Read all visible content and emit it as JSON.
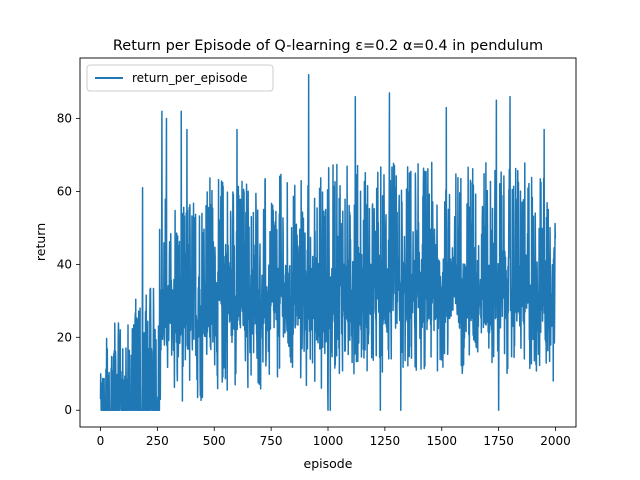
{
  "chart_data": {
    "type": "line",
    "title": "Return per Episode of Q-learning ε=0.2 α=0.4 in pendulum",
    "xlabel": "episode",
    "ylabel": "return",
    "xlim": [
      -90,
      2090
    ],
    "ylim": [
      -4.6,
      96.6
    ],
    "xticks": [
      0,
      250,
      500,
      750,
      1000,
      1250,
      1500,
      1750,
      2000
    ],
    "yticks": [
      0,
      20,
      40,
      60,
      80
    ],
    "grid": false,
    "legend": {
      "position": "top-left",
      "entries": [
        "return_per_episode"
      ]
    },
    "colors": {
      "series": "#1f77b4"
    },
    "series": [
      {
        "name": "return_per_episode",
        "n_points": 2000,
        "phases": [
          {
            "x_start": 0,
            "x_end": 20,
            "baseline": 0,
            "noise_low": 0,
            "noise_high": 10
          },
          {
            "x_start": 20,
            "x_end": 150,
            "baseline": 0,
            "noise_low": 0,
            "noise_high": 24
          },
          {
            "x_start": 150,
            "x_end": 260,
            "baseline": 0,
            "noise_low": 0,
            "noise_high": 34
          },
          {
            "x_start": 260,
            "x_end": 450,
            "baseline": 25,
            "noise_low": 2,
            "noise_high": 60
          },
          {
            "x_start": 450,
            "x_end": 1000,
            "baseline": 30,
            "noise_low": 5,
            "noise_high": 65
          },
          {
            "x_start": 1000,
            "x_end": 2000,
            "baseline": 32,
            "noise_low": 10,
            "noise_high": 68
          }
        ],
        "peaks": [
          {
            "x": 100,
            "y": 0
          },
          {
            "x": 185,
            "y": 61
          },
          {
            "x": 270,
            "y": 82
          },
          {
            "x": 290,
            "y": 80
          },
          {
            "x": 355,
            "y": 82
          },
          {
            "x": 380,
            "y": 77
          },
          {
            "x": 600,
            "y": 77
          },
          {
            "x": 915,
            "y": 92
          },
          {
            "x": 1000,
            "y": 0
          },
          {
            "x": 1010,
            "y": 0
          },
          {
            "x": 1120,
            "y": 86
          },
          {
            "x": 1230,
            "y": 0
          },
          {
            "x": 1270,
            "y": 87
          },
          {
            "x": 1320,
            "y": 0
          },
          {
            "x": 1520,
            "y": 83
          },
          {
            "x": 1740,
            "y": 85
          },
          {
            "x": 1750,
            "y": 0
          },
          {
            "x": 1800,
            "y": 86
          },
          {
            "x": 1950,
            "y": 77
          },
          {
            "x": 1990,
            "y": 8
          },
          {
            "x": 2000,
            "y": 36
          }
        ]
      }
    ]
  }
}
